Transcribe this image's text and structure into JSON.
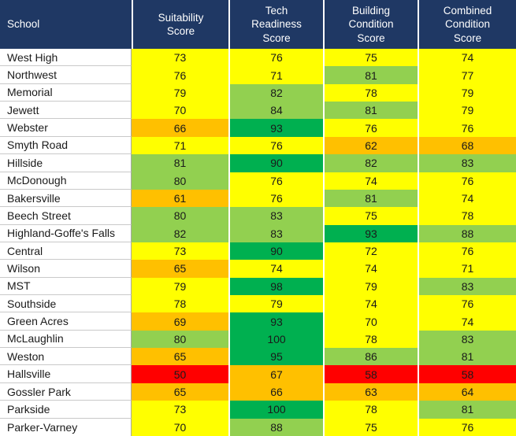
{
  "header": {
    "bg_color": "#1F3864",
    "text_color": "#FFFFFF",
    "school": "School",
    "suitability": "Suitability\nScore",
    "tech": "Tech\nReadiness\nScore",
    "building": "Building\nCondition\nScore",
    "combined": "Combined\nCondition\nScore"
  },
  "chart_data": {
    "type": "table",
    "columns": [
      "School",
      "Suitability Score",
      "Tech Readiness Score",
      "Building Condition Score",
      "Combined Condition Score"
    ],
    "palette": {
      "green": "#00B050",
      "light_green": "#92D050",
      "yellow": "#FFFF00",
      "orange": "#FFC000",
      "red": "#FF0000"
    },
    "color_scale": {
      "red": "below 60",
      "orange": "60-69",
      "yellow": "70-79",
      "light_green": "80-89",
      "green": "90 and above"
    },
    "rows": [
      {
        "school": "West High",
        "values": [
          73,
          76,
          75,
          74
        ],
        "colors": [
          "yellow",
          "yellow",
          "yellow",
          "yellow"
        ]
      },
      {
        "school": "Northwest",
        "values": [
          76,
          71,
          81,
          77
        ],
        "colors": [
          "yellow",
          "yellow",
          "light_green",
          "yellow"
        ]
      },
      {
        "school": "Memorial",
        "values": [
          79,
          82,
          78,
          79
        ],
        "colors": [
          "yellow",
          "light_green",
          "yellow",
          "yellow"
        ]
      },
      {
        "school": "Jewett",
        "values": [
          70,
          84,
          81,
          79
        ],
        "colors": [
          "yellow",
          "light_green",
          "light_green",
          "yellow"
        ]
      },
      {
        "school": "Webster",
        "values": [
          66,
          93,
          76,
          76
        ],
        "colors": [
          "orange",
          "green",
          "yellow",
          "yellow"
        ]
      },
      {
        "school": "Smyth Road",
        "values": [
          71,
          76,
          62,
          68
        ],
        "colors": [
          "yellow",
          "yellow",
          "orange",
          "orange"
        ]
      },
      {
        "school": "Hillside",
        "values": [
          81,
          90,
          82,
          83
        ],
        "colors": [
          "light_green",
          "green",
          "light_green",
          "light_green"
        ]
      },
      {
        "school": "McDonough",
        "values": [
          80,
          76,
          74,
          76
        ],
        "colors": [
          "light_green",
          "yellow",
          "yellow",
          "yellow"
        ]
      },
      {
        "school": "Bakersville",
        "values": [
          61,
          76,
          81,
          74
        ],
        "colors": [
          "orange",
          "yellow",
          "light_green",
          "yellow"
        ]
      },
      {
        "school": "Beech Street",
        "values": [
          80,
          83,
          75,
          78
        ],
        "colors": [
          "light_green",
          "light_green",
          "yellow",
          "yellow"
        ]
      },
      {
        "school": "Highland-Goffe's Falls",
        "values": [
          82,
          83,
          93,
          88
        ],
        "colors": [
          "light_green",
          "light_green",
          "green",
          "light_green"
        ]
      },
      {
        "school": "Central",
        "values": [
          73,
          90,
          72,
          76
        ],
        "colors": [
          "yellow",
          "green",
          "yellow",
          "yellow"
        ]
      },
      {
        "school": "Wilson",
        "values": [
          65,
          74,
          74,
          71
        ],
        "colors": [
          "orange",
          "yellow",
          "yellow",
          "yellow"
        ]
      },
      {
        "school": "MST",
        "values": [
          79,
          98,
          79,
          83
        ],
        "colors": [
          "yellow",
          "green",
          "yellow",
          "light_green"
        ]
      },
      {
        "school": "Southside",
        "values": [
          78,
          79,
          74,
          76
        ],
        "colors": [
          "yellow",
          "yellow",
          "yellow",
          "yellow"
        ]
      },
      {
        "school": "Green Acres",
        "values": [
          69,
          93,
          70,
          74
        ],
        "colors": [
          "orange",
          "green",
          "yellow",
          "yellow"
        ]
      },
      {
        "school": "McLaughlin",
        "values": [
          80,
          100,
          78,
          83
        ],
        "colors": [
          "light_green",
          "green",
          "yellow",
          "light_green"
        ]
      },
      {
        "school": "Weston",
        "values": [
          65,
          95,
          86,
          81
        ],
        "colors": [
          "orange",
          "green",
          "light_green",
          "light_green"
        ]
      },
      {
        "school": "Hallsville",
        "values": [
          50,
          67,
          58,
          58
        ],
        "colors": [
          "red",
          "orange",
          "red",
          "red"
        ]
      },
      {
        "school": "Gossler Park",
        "values": [
          65,
          66,
          63,
          64
        ],
        "colors": [
          "orange",
          "orange",
          "orange",
          "orange"
        ]
      },
      {
        "school": "Parkside",
        "values": [
          73,
          100,
          78,
          81
        ],
        "colors": [
          "yellow",
          "green",
          "yellow",
          "light_green"
        ]
      },
      {
        "school": "Parker-Varney",
        "values": [
          70,
          88,
          75,
          76
        ],
        "colors": [
          "yellow",
          "light_green",
          "yellow",
          "yellow"
        ]
      }
    ]
  }
}
